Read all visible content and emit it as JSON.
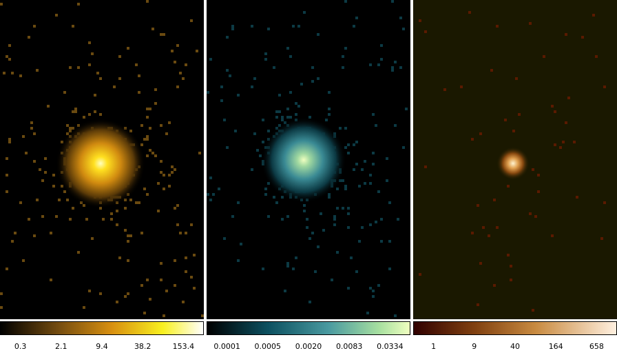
{
  "panels": [
    {
      "colorbar": {
        "ticks": [
          "0.3",
          "2.1",
          "9.4",
          "38.2",
          "153.4"
        ]
      }
    },
    {
      "colorbar": {
        "ticks": [
          "0.0001",
          "0.0005",
          "0.0020",
          "0.0083",
          "0.0334"
        ]
      }
    },
    {
      "colorbar": {
        "ticks": [
          "1",
          "9",
          "40",
          "164",
          "658"
        ]
      }
    }
  ]
}
